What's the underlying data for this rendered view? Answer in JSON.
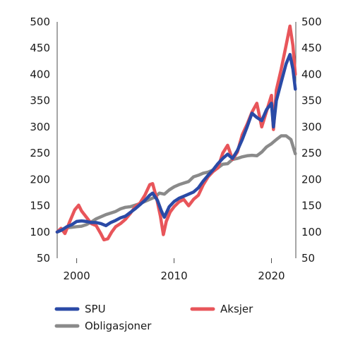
{
  "chart_data": {
    "type": "line",
    "title": "",
    "xlabel": "",
    "ylabel": "",
    "xlim": [
      1998,
      2022.5
    ],
    "ylim": [
      50,
      500
    ],
    "yticks": [
      50,
      100,
      150,
      200,
      250,
      300,
      350,
      400,
      450,
      500
    ],
    "xticks": [
      2000,
      2010,
      2020
    ],
    "grid": false,
    "axes": "left and right y-axes with identical ticks; x-axis ticks at the bottom",
    "legend_position": "bottom",
    "series": [
      {
        "name": "SPU",
        "color": "#2a4aa6",
        "x": [
          1998.0,
          1998.5,
          1999.0,
          1999.5,
          2000.0,
          2000.5,
          2001.0,
          2001.5,
          2002.0,
          2002.5,
          2003.0,
          2003.5,
          2004.0,
          2004.5,
          2005.0,
          2005.5,
          2006.0,
          2006.5,
          2007.0,
          2007.5,
          2007.8,
          2008.3,
          2008.7,
          2009.0,
          2009.5,
          2010.0,
          2010.5,
          2011.0,
          2011.5,
          2012.0,
          2012.5,
          2013.0,
          2013.5,
          2014.0,
          2014.5,
          2015.0,
          2015.5,
          2016.0,
          2016.5,
          2017.0,
          2017.5,
          2018.0,
          2018.5,
          2019.0,
          2019.5,
          2020.0,
          2020.2,
          2020.5,
          2021.0,
          2021.5,
          2021.9,
          2022.2,
          2022.45
        ],
        "y": [
          100,
          104,
          110,
          114,
          120,
          121,
          120,
          118,
          118,
          116,
          112,
          118,
          122,
          127,
          130,
          137,
          144,
          152,
          160,
          170,
          174,
          160,
          140,
          128,
          148,
          158,
          164,
          168,
          172,
          176,
          184,
          197,
          208,
          218,
          230,
          240,
          248,
          240,
          255,
          276,
          300,
          326,
          318,
          312,
          333,
          345,
          300,
          350,
          385,
          420,
          438,
          410,
          372
        ]
      },
      {
        "name": "Aksjer",
        "color": "#e8555a",
        "x": [
          1998.0,
          1998.4,
          1998.8,
          1999.3,
          1999.8,
          2000.2,
          2000.5,
          2001.0,
          2001.5,
          2002.0,
          2002.5,
          2002.8,
          2003.2,
          2003.6,
          2004.0,
          2004.5,
          2005.0,
          2005.5,
          2006.0,
          2006.5,
          2007.0,
          2007.5,
          2007.8,
          2008.2,
          2008.6,
          2008.9,
          2009.2,
          2009.6,
          2010.0,
          2010.5,
          2011.0,
          2011.5,
          2012.0,
          2012.5,
          2013.0,
          2013.5,
          2014.0,
          2014.5,
          2015.0,
          2015.5,
          2016.0,
          2016.5,
          2017.0,
          2017.5,
          2018.0,
          2018.5,
          2019.0,
          2019.5,
          2020.0,
          2020.2,
          2020.5,
          2021.0,
          2021.5,
          2021.9,
          2022.2,
          2022.45
        ],
        "y": [
          100,
          107,
          97,
          120,
          142,
          151,
          140,
          128,
          116,
          112,
          96,
          85,
          87,
          100,
          110,
          116,
          124,
          135,
          148,
          155,
          170,
          190,
          192,
          165,
          130,
          95,
          120,
          138,
          148,
          157,
          162,
          150,
          162,
          170,
          190,
          205,
          215,
          222,
          250,
          265,
          238,
          252,
          285,
          305,
          328,
          345,
          300,
          330,
          360,
          295,
          370,
          410,
          455,
          492,
          455,
          400
        ]
      },
      {
        "name": "Obligasjoner",
        "color": "#8a8a8a",
        "x": [
          1998.0,
          1998.5,
          1999.0,
          1999.5,
          2000.0,
          2000.5,
          2001.0,
          2001.5,
          2002.0,
          2002.5,
          2003.0,
          2003.5,
          2004.0,
          2004.5,
          2005.0,
          2005.5,
          2006.0,
          2006.5,
          2007.0,
          2007.5,
          2008.0,
          2008.5,
          2009.0,
          2009.5,
          2010.0,
          2010.5,
          2011.0,
          2011.5,
          2012.0,
          2012.5,
          2013.0,
          2013.5,
          2014.0,
          2014.5,
          2015.0,
          2015.5,
          2016.0,
          2016.5,
          2017.0,
          2017.5,
          2018.0,
          2018.5,
          2019.0,
          2019.5,
          2020.0,
          2020.5,
          2021.0,
          2021.5,
          2022.0,
          2022.45
        ],
        "y": [
          100,
          104,
          108,
          109,
          110,
          111,
          114,
          119,
          125,
          129,
          133,
          136,
          139,
          144,
          147,
          148,
          151,
          154,
          158,
          162,
          166,
          174,
          172,
          180,
          186,
          190,
          193,
          196,
          205,
          208,
          212,
          214,
          218,
          222,
          229,
          230,
          238,
          240,
          243,
          245,
          246,
          245,
          252,
          262,
          268,
          276,
          283,
          283,
          276,
          249
        ]
      }
    ]
  }
}
